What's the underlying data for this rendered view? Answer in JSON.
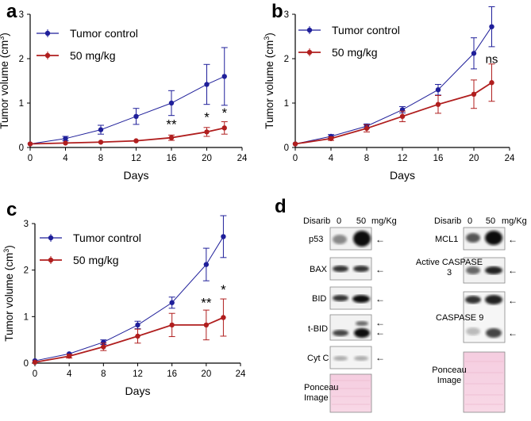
{
  "chart_data": [
    {
      "panel_label": "a",
      "type": "line",
      "xlabel": "Days",
      "ylabel": "Tumor volume (cm",
      "ylabel_sup": "3",
      "ylabel_end": ")",
      "xticks": [
        "0",
        "4",
        "8",
        "12",
        "16",
        "20",
        "24"
      ],
      "yticks": [
        "0",
        "1",
        "2",
        "3"
      ],
      "xlim": [
        0,
        24
      ],
      "ylim": [
        0,
        3
      ],
      "series": [
        {
          "name": "Tumor control",
          "color": "#1f1f9a",
          "x": [
            0,
            4,
            8,
            12,
            16,
            20,
            22
          ],
          "y": [
            0.08,
            0.2,
            0.4,
            0.7,
            1.0,
            1.42,
            1.6
          ],
          "err": [
            0.02,
            0.05,
            0.1,
            0.18,
            0.28,
            0.45,
            0.65
          ]
        },
        {
          "name": "50 mg/kg",
          "color": "#b01e1e",
          "x": [
            0,
            4,
            8,
            12,
            16,
            20,
            22
          ],
          "y": [
            0.08,
            0.1,
            0.12,
            0.15,
            0.22,
            0.35,
            0.44
          ],
          "err": [
            0.02,
            0.02,
            0.02,
            0.03,
            0.06,
            0.1,
            0.14
          ]
        }
      ],
      "annotations": [
        {
          "text": "**",
          "x": 16,
          "y": 0.42
        },
        {
          "text": "*",
          "x": 20,
          "y": 0.58
        },
        {
          "text": "*",
          "x": 22,
          "y": 0.68
        }
      ]
    },
    {
      "panel_label": "b",
      "type": "line",
      "xlabel": "Days",
      "ylabel": "Tumor volume (cm",
      "ylabel_sup": "3",
      "ylabel_end": ")",
      "xticks": [
        "0",
        "4",
        "8",
        "12",
        "16",
        "20",
        "24"
      ],
      "yticks": [
        "0",
        "1",
        "2",
        "3"
      ],
      "xlim": [
        0,
        24
      ],
      "ylim": [
        0,
        3
      ],
      "series": [
        {
          "name": "Tumor control",
          "color": "#1f1f9a",
          "x": [
            0,
            4,
            8,
            12,
            16,
            20,
            22
          ],
          "y": [
            0.08,
            0.25,
            0.48,
            0.85,
            1.3,
            2.12,
            2.72
          ],
          "err": [
            0.02,
            0.04,
            0.05,
            0.07,
            0.12,
            0.35,
            0.45
          ]
        },
        {
          "name": "50 mg/kg",
          "color": "#b01e1e",
          "x": [
            0,
            4,
            8,
            12,
            16,
            20,
            22
          ],
          "y": [
            0.08,
            0.2,
            0.43,
            0.7,
            0.97,
            1.2,
            1.46
          ],
          "err": [
            0.02,
            0.04,
            0.08,
            0.12,
            0.2,
            0.32,
            0.42
          ]
        }
      ],
      "annotations": [
        {
          "text": "ns",
          "x": 22,
          "y": 1.9
        }
      ]
    },
    {
      "panel_label": "c",
      "type": "line",
      "xlabel": "Days",
      "ylabel": "Tumor volume (cm",
      "ylabel_sup": "3",
      "ylabel_end": ")",
      "xticks": [
        "0",
        "4",
        "8",
        "12",
        "16",
        "20",
        "24"
      ],
      "yticks": [
        "0",
        "1",
        "2",
        "3"
      ],
      "xlim": [
        0,
        24
      ],
      "ylim": [
        0,
        3
      ],
      "series": [
        {
          "name": "Tumor control",
          "color": "#1f1f9a",
          "x": [
            0,
            4,
            8,
            12,
            16,
            20,
            22
          ],
          "y": [
            0.05,
            0.2,
            0.45,
            0.82,
            1.3,
            2.12,
            2.72
          ],
          "err": [
            0.02,
            0.03,
            0.05,
            0.08,
            0.12,
            0.35,
            0.45
          ]
        },
        {
          "name": "50 mg/kg",
          "color": "#b01e1e",
          "x": [
            0,
            4,
            8,
            12,
            16,
            20,
            22
          ],
          "y": [
            0.02,
            0.15,
            0.35,
            0.58,
            0.82,
            0.82,
            0.98
          ],
          "err": [
            0.02,
            0.04,
            0.08,
            0.15,
            0.25,
            0.32,
            0.4
          ]
        }
      ],
      "annotations": [
        {
          "text": "**",
          "x": 20,
          "y": 1.2
        },
        {
          "text": "*",
          "x": 22,
          "y": 1.48
        }
      ]
    }
  ],
  "blots": {
    "panel_label": "d",
    "left": {
      "drug_label": "Disarib",
      "doses": [
        "0",
        "50"
      ],
      "unit": "mg/Kg",
      "rows": [
        {
          "label": "p53",
          "arrows": 1
        },
        {
          "label": "BAX",
          "arrows": 1
        },
        {
          "label": "BID",
          "arrows": 1
        },
        {
          "label": "t-BID",
          "arrows": 2
        },
        {
          "label": "Cyt C",
          "arrows": 1
        },
        {
          "label": "Ponceau Image",
          "arrows": 0
        }
      ]
    },
    "right": {
      "drug_label": "Disarib",
      "doses": [
        "0",
        "50"
      ],
      "unit": "mg/Kg",
      "rows": [
        {
          "label": "MCL1",
          "arrows": 1
        },
        {
          "label": "Active CASPASE 3",
          "arrows": 1
        },
        {
          "label": "CASPASE 9",
          "arrows": 2
        },
        {
          "label": "Ponceau Image",
          "arrows": 0
        }
      ]
    }
  }
}
